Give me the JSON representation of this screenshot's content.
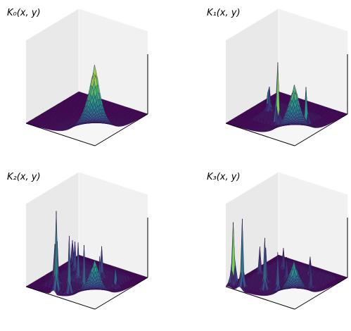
{
  "figure": {
    "background": "#ffffff",
    "pane_colors": {
      "left": "#e9e9e9",
      "right": "#f1f1f1",
      "floor": "#f6f6f6",
      "axis_line": "#000000"
    },
    "colormap": [
      "#440154",
      "#3b528b",
      "#21908d",
      "#5dc963",
      "#fde725"
    ]
  },
  "chart_data": [
    {
      "type": "surface3d",
      "title": "K₀(x, y)",
      "colormap": "viridis",
      "axes_ticks": "hidden",
      "shape": "smooth ramp rising toward the far-right corner, flat elsewhere",
      "peaks": [
        {
          "u": 0.98,
          "v": 0.02,
          "height": 1.0,
          "kind": "corner_ramp"
        }
      ],
      "flat_regions": [
        {
          "u0": 0.0,
          "u1": 1.0,
          "v0": 0.0,
          "v1": 1.0,
          "height": 0.0
        }
      ]
    },
    {
      "type": "surface3d",
      "title": "K₁(x, y)",
      "colormap": "viridis",
      "axes_ticks": "hidden",
      "shape": "four sharp spikes with a corner ramp over a stepped plateau",
      "peaks": [
        {
          "u": 0.52,
          "v": 0.3,
          "height": 1.0
        },
        {
          "u": 0.24,
          "v": 0.5,
          "height": 0.55
        },
        {
          "u": 0.8,
          "v": 0.48,
          "height": 0.62
        },
        {
          "u": 0.98,
          "v": 0.02,
          "height": 0.75,
          "kind": "corner_ramp"
        }
      ],
      "flat_regions": [
        {
          "u0": 0.2,
          "u1": 0.8,
          "v0": 0.25,
          "v1": 0.75,
          "height": 0.04
        }
      ]
    },
    {
      "type": "surface3d",
      "title": "K₂(x, y)",
      "colormap": "viridis",
      "axes_ticks": "hidden",
      "shape": "many sharp spikes over terraced plateaus",
      "peaks": [
        {
          "u": 0.4,
          "v": 0.05,
          "height": 1.0
        },
        {
          "u": 0.55,
          "v": 0.1,
          "height": 0.72
        },
        {
          "u": 0.3,
          "v": 0.2,
          "height": 0.55
        },
        {
          "u": 0.65,
          "v": 0.25,
          "height": 0.58
        },
        {
          "u": 0.15,
          "v": 0.35,
          "height": 0.42
        },
        {
          "u": 0.45,
          "v": 0.4,
          "height": 0.5
        },
        {
          "u": 0.8,
          "v": 0.35,
          "height": 0.45
        },
        {
          "u": 0.25,
          "v": 0.6,
          "height": 0.38
        },
        {
          "u": 0.6,
          "v": 0.65,
          "height": 0.4
        },
        {
          "u": 0.88,
          "v": 0.55,
          "height": 0.35
        },
        {
          "u": 0.1,
          "v": 0.75,
          "height": 0.3
        },
        {
          "u": 0.98,
          "v": 0.02,
          "height": 0.6,
          "kind": "corner_ramp"
        }
      ],
      "flat_regions": [
        {
          "u0": 0.15,
          "u1": 0.85,
          "v0": 0.15,
          "v1": 0.85,
          "height": 0.05
        },
        {
          "u0": 0.35,
          "u1": 0.65,
          "v0": 0.35,
          "v1": 0.65,
          "height": 0.09
        }
      ]
    },
    {
      "type": "surface3d",
      "title": "K₃(x, y)",
      "colormap": "viridis",
      "axes_ticks": "hidden",
      "shape": "dense field of thin spikes and rugged terraces",
      "peaks": [
        {
          "u": 0.05,
          "v": 0.08,
          "height": 1.0
        },
        {
          "u": 0.2,
          "v": 0.05,
          "height": 0.85
        },
        {
          "u": 0.45,
          "v": 0.15,
          "height": 0.65
        },
        {
          "u": 0.35,
          "v": 0.3,
          "height": 0.45
        },
        {
          "u": 0.6,
          "v": 0.2,
          "height": 0.5
        },
        {
          "u": 0.75,
          "v": 0.3,
          "height": 0.38
        },
        {
          "u": 0.15,
          "v": 0.45,
          "height": 0.35
        },
        {
          "u": 0.5,
          "v": 0.5,
          "height": 0.3
        },
        {
          "u": 0.85,
          "v": 0.5,
          "height": 0.32
        },
        {
          "u": 0.3,
          "v": 0.7,
          "height": 0.28
        },
        {
          "u": 0.65,
          "v": 0.75,
          "height": 0.25
        },
        {
          "u": 0.95,
          "v": 0.05,
          "height": 0.55,
          "kind": "corner_ramp"
        }
      ],
      "flat_regions": [
        {
          "u0": 0.1,
          "u1": 0.9,
          "v0": 0.1,
          "v1": 0.9,
          "height": 0.04
        }
      ]
    }
  ]
}
